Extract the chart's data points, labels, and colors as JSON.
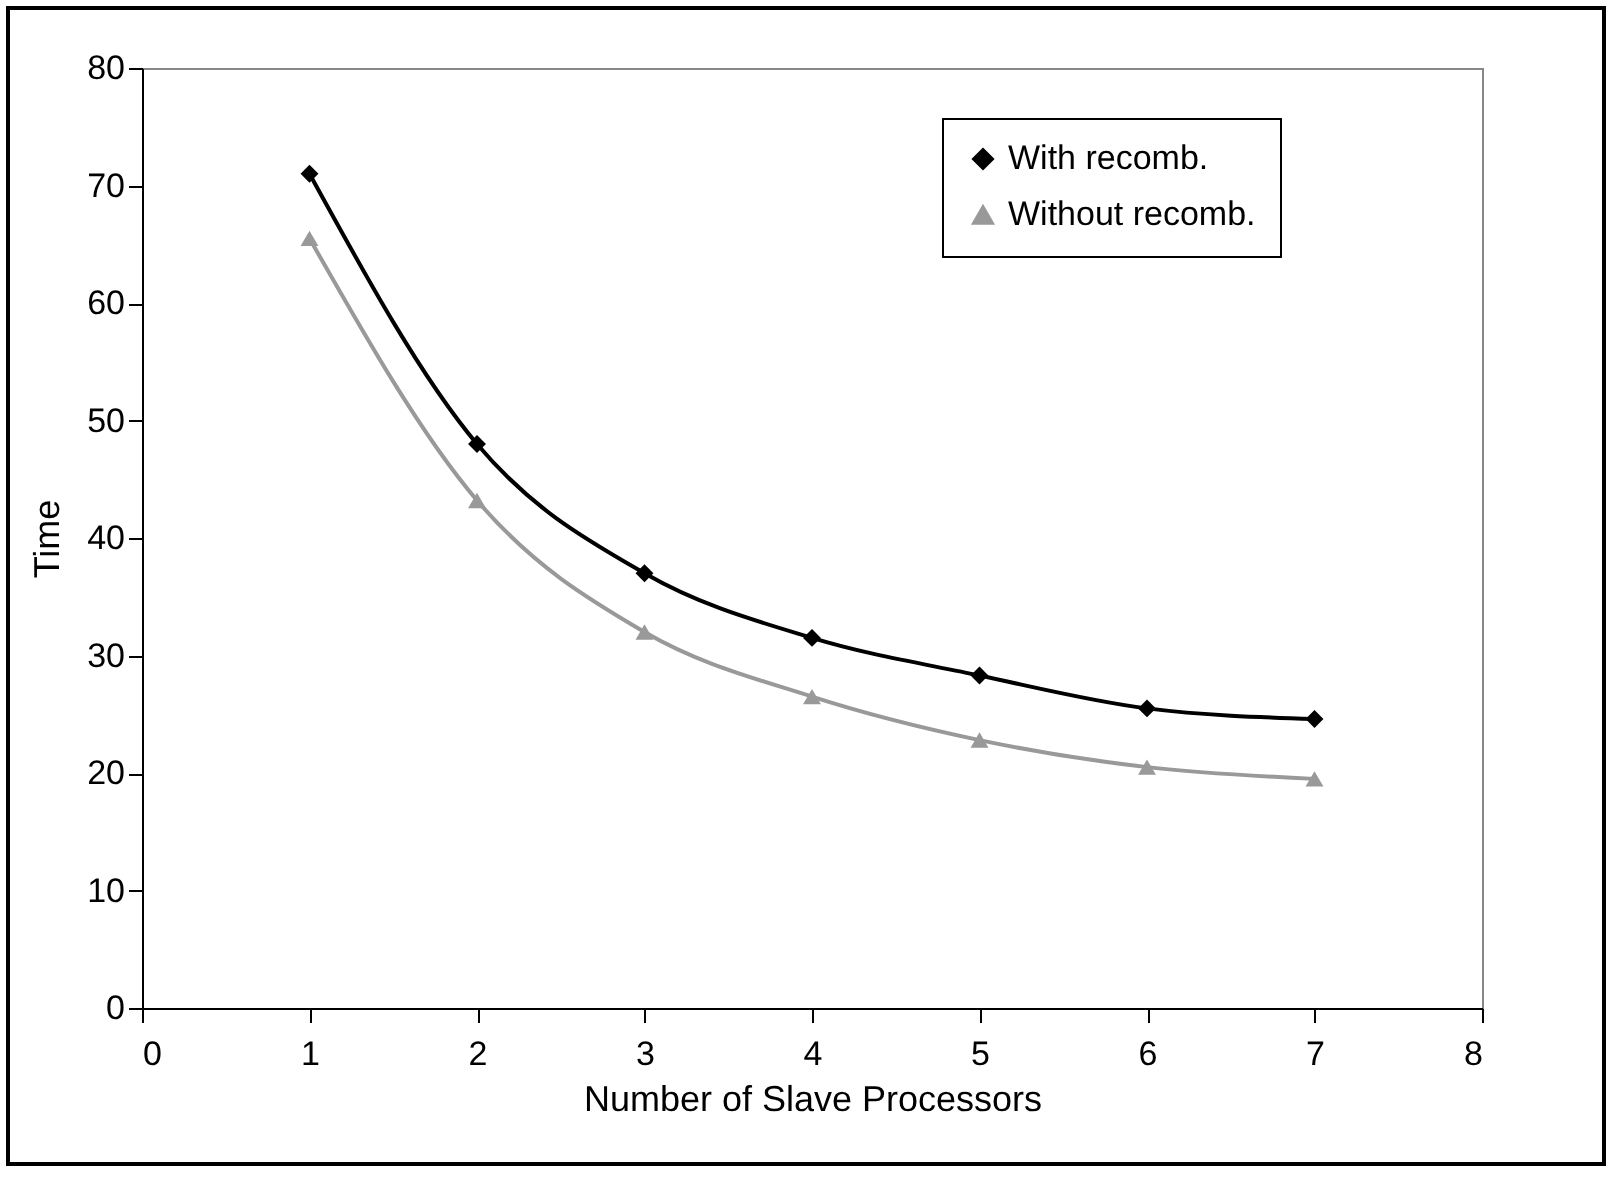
{
  "chart_data": {
    "type": "line",
    "xlabel": "Number of Slave Processors",
    "ylabel": "Time",
    "x": [
      1,
      2,
      3,
      4,
      5,
      6,
      7
    ],
    "series": [
      {
        "name": "With recomb.",
        "color": "#000000",
        "marker": "diamond",
        "values": [
          71,
          48,
          37,
          31.5,
          28.3,
          25.5,
          24.6
        ]
      },
      {
        "name": "Without recomb.",
        "color": "#999999",
        "marker": "triangle",
        "values": [
          65.5,
          43.2,
          32,
          26.5,
          22.8,
          20.5,
          19.5
        ]
      }
    ],
    "xlim": [
      0,
      8
    ],
    "xticks": [
      0,
      1,
      2,
      3,
      4,
      5,
      6,
      7,
      8
    ],
    "ylim": [
      0,
      80
    ],
    "yticks": [
      0,
      10,
      20,
      30,
      40,
      50,
      60,
      70,
      80
    ],
    "grid": false,
    "legend": "top right"
  }
}
